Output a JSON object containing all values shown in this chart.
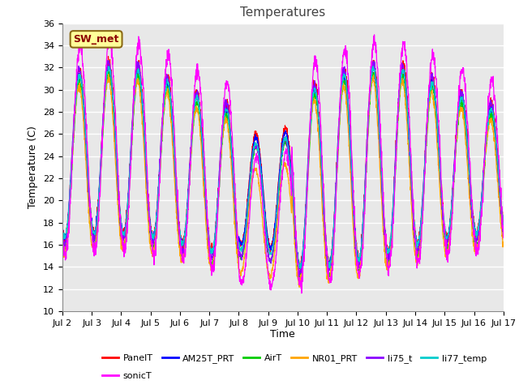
{
  "title": "Temperatures",
  "ylabel": "Temperature (C)",
  "xlabel": "Time",
  "ylim": [
    10,
    36
  ],
  "n_days": 15,
  "x_tick_labels": [
    "Jul 2",
    "Jul 3",
    "Jul 4",
    "Jul 5",
    "Jul 6",
    "Jul 7",
    "Jul 8",
    "Jul 9",
    "Jul 10",
    "Jul 11",
    "Jul 12",
    "Jul 13",
    "Jul 14",
    "Jul 15",
    "Jul 16",
    "Jul 17"
  ],
  "series": [
    {
      "name": "PanelT",
      "color": "#FF0000"
    },
    {
      "name": "AM25T_PRT",
      "color": "#0000FF"
    },
    {
      "name": "AirT",
      "color": "#00CC00"
    },
    {
      "name": "NR01_PRT",
      "color": "#FFA500"
    },
    {
      "name": "li75_t",
      "color": "#8B00FF"
    },
    {
      "name": "li77_temp",
      "color": "#00CCCC"
    },
    {
      "name": "sonicT",
      "color": "#FF00FF"
    }
  ],
  "sw_met_box_facecolor": "#FFFF99",
  "sw_met_box_edgecolor": "#8B6914",
  "sw_met_text_color": "#8B0000",
  "plot_bg_color": "#E8E8E8",
  "fig_bg_color": "#FFFFFF",
  "grid_color": "#FFFFFF",
  "title_fontsize": 11,
  "axis_label_fontsize": 9,
  "tick_fontsize": 8,
  "legend_fontsize": 8,
  "line_width": 0.9
}
